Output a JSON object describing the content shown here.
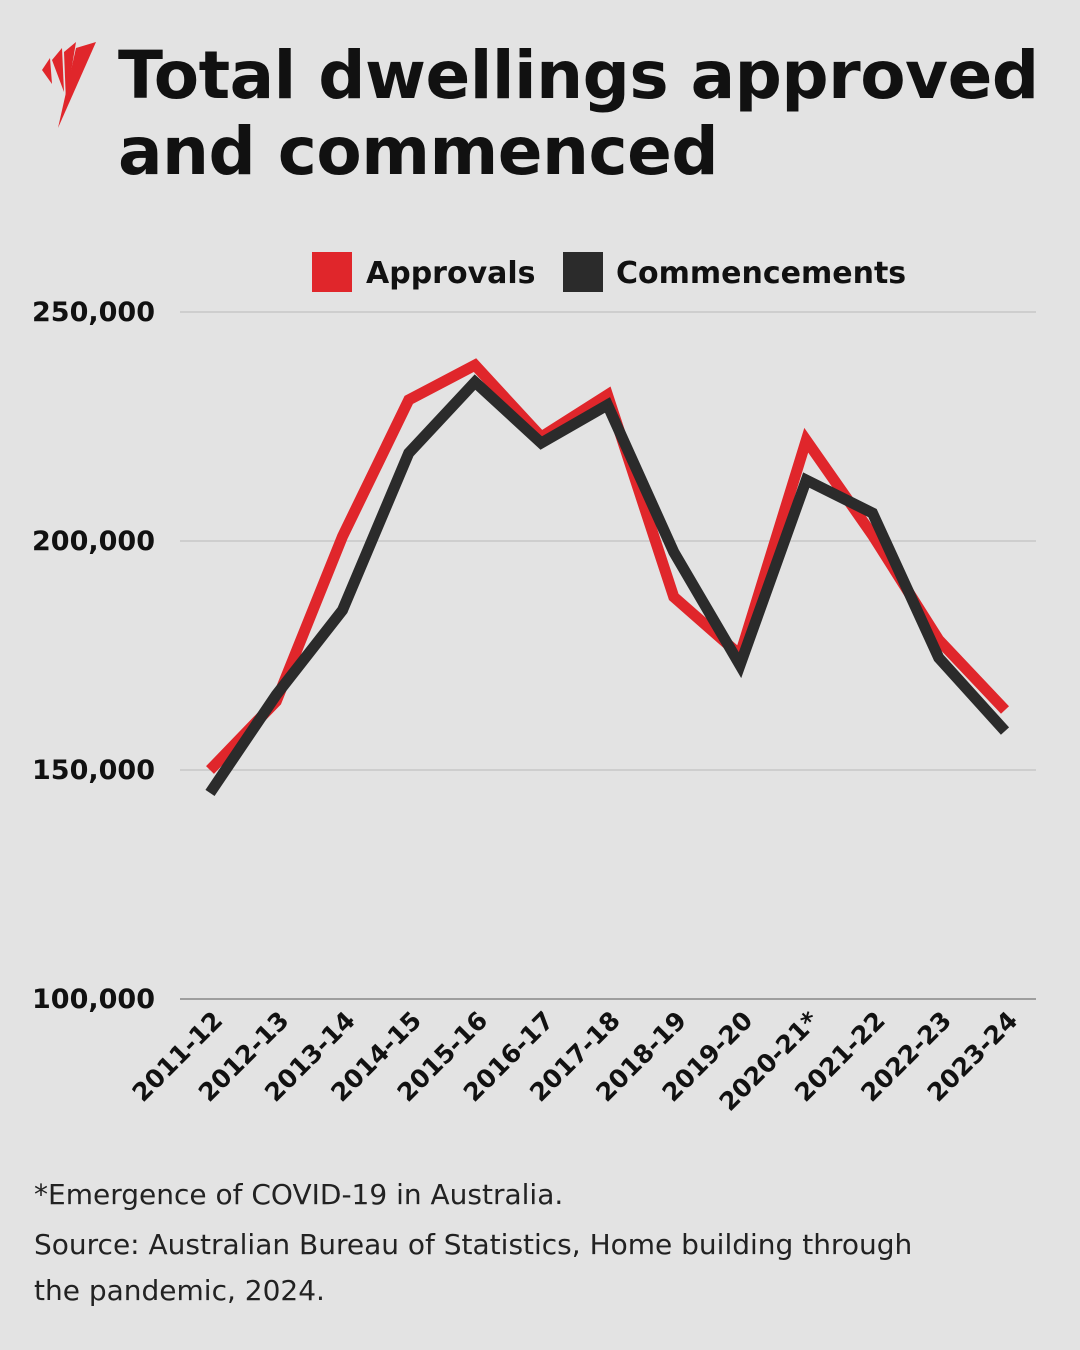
{
  "title": "Total dwellings approved and commenced",
  "logo": "SBS",
  "colors": {
    "approvals": "#e0262b",
    "commencements": "#2b2b2b",
    "background": "#e3e3e3",
    "grid": "#b8b8b8"
  },
  "chart_data": {
    "type": "line",
    "title": "Total dwellings approved and commenced",
    "xlabel": "",
    "ylabel": "",
    "categories": [
      "2011-12",
      "2012-13",
      "2013-14",
      "2014-15",
      "2015-16",
      "2016-17",
      "2017-18",
      "2018-19",
      "2019-20",
      "2020-21*",
      "2021-22",
      "2022-23",
      "2023-24"
    ],
    "series": [
      {
        "name": "Approvals",
        "color": "#e0262b",
        "values": [
          150000,
          165000,
          201000,
          230800,
          238400,
          222700,
          231900,
          187800,
          175100,
          222000,
          201300,
          178400,
          163100
        ]
      },
      {
        "name": "Commencements",
        "color": "#2b2b2b",
        "values": [
          145000,
          166400,
          184900,
          219200,
          234700,
          221400,
          229700,
          197600,
          172900,
          213300,
          206100,
          174500,
          158500
        ]
      }
    ],
    "ylim": [
      100000,
      250000
    ],
    "yticks": [
      100000,
      150000,
      200000,
      250000
    ],
    "ytick_labels": [
      "100,000",
      "150,000",
      "200,000",
      "250,000"
    ],
    "grid": true,
    "legend_placement": "top"
  },
  "footnotes": {
    "note": "*Emergence of COVID-19 in Australia.",
    "source_line1": "Source: Australian Bureau of Statistics, Home building through",
    "source_line2": "the pandemic, 2024."
  }
}
